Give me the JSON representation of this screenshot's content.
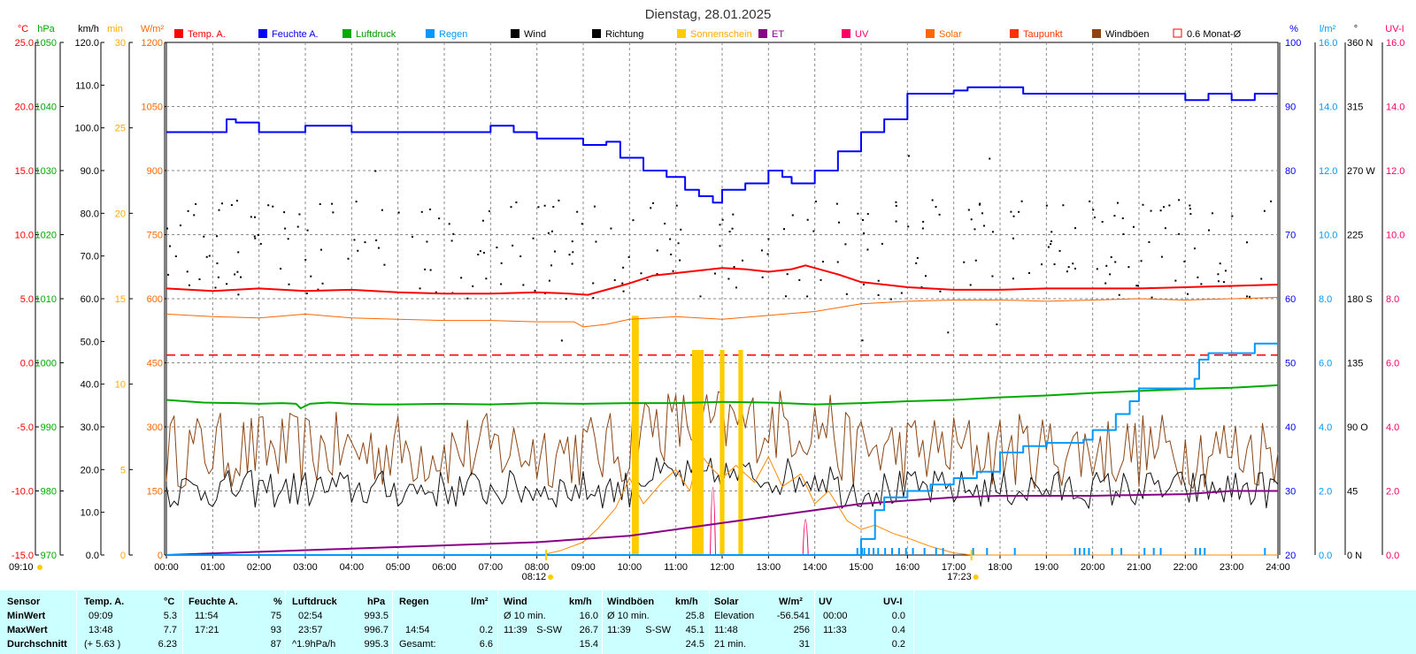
{
  "chart_data": {
    "type": "line",
    "title": "Dienstag, 28.01.2025",
    "x_ticks": [
      "00:00",
      "01:00",
      "02:00",
      "03:00",
      "04:00",
      "05:00",
      "06:00",
      "07:00",
      "08:00",
      "09:00",
      "10:00",
      "11:00",
      "12:00",
      "13:00",
      "14:00",
      "15:00",
      "16:00",
      "17:00",
      "18:00",
      "19:00",
      "20:00",
      "21:00",
      "22:00",
      "23:00",
      "24:00"
    ],
    "x_unit": "hours",
    "sunrise": "08:12",
    "sunset": "17:23",
    "moon": "09:10",
    "left_axes": [
      {
        "unit": "°C",
        "color": "#ff0000",
        "ylim": [
          -15,
          25
        ],
        "ticks": [
          "25.0",
          "20.0",
          "15.0",
          "10.0",
          "5.0",
          "0.0",
          "-5.0",
          "-10.0",
          "-15.0"
        ]
      },
      {
        "unit": "hPa",
        "color": "#00aa00",
        "ylim": [
          970,
          1050
        ],
        "ticks": [
          "1050",
          "1040",
          "1030",
          "1020",
          "1010",
          "1000",
          "990",
          "980",
          "970"
        ]
      },
      {
        "unit": "km/h",
        "color": "#000000",
        "ylim": [
          0,
          120
        ],
        "ticks": [
          "120.0",
          "110.0",
          "100.0",
          "90.0",
          "80.0",
          "70.0",
          "60.0",
          "50.0",
          "40.0",
          "30.0",
          "20.0",
          "10.0",
          "0.0"
        ]
      },
      {
        "unit": "min",
        "color": "#ffaa00",
        "ylim": [
          0,
          30
        ],
        "ticks": [
          "30",
          "25",
          "20",
          "15",
          "10",
          "5",
          "0"
        ]
      },
      {
        "unit": "W/m²",
        "color": "#ff6600",
        "ylim": [
          0,
          1200
        ],
        "ticks": [
          "1200",
          "1050",
          "900",
          "750",
          "600",
          "450",
          "300",
          "150",
          "0"
        ]
      }
    ],
    "right_axes": [
      {
        "unit": "%",
        "color": "#0000ff",
        "ylim": [
          20,
          100
        ],
        "ticks": [
          "100",
          "90",
          "80",
          "70",
          "60",
          "50",
          "40",
          "30",
          "20"
        ]
      },
      {
        "unit": "l/m²",
        "color": "#0099ff",
        "ylim": [
          0,
          16
        ],
        "ticks": [
          "16.0",
          "14.0",
          "12.0",
          "10.0",
          "8.0",
          "6.0",
          "4.0",
          "2.0",
          "0.0"
        ]
      },
      {
        "unit": "°",
        "color": "#000000",
        "ylim": [
          0,
          360
        ],
        "ticks": [
          "360 N",
          "315",
          "270 W",
          "225",
          "180 S",
          "135",
          "90 O",
          "45",
          "0 N"
        ]
      },
      {
        "unit": "UV-I",
        "color": "#ff0066",
        "ylim": [
          0,
          16
        ],
        "ticks": [
          "16.0",
          "14.0",
          "12.0",
          "10.0",
          "8.0",
          "6.0",
          "4.0",
          "2.0",
          "0.0"
        ]
      }
    ],
    "legend": [
      {
        "name": "Temp. A.",
        "color": "#ff0000",
        "text_color": "#ff0000"
      },
      {
        "name": "Feuchte A.",
        "color": "#0000ff",
        "text_color": "#0000ff"
      },
      {
        "name": "Luftdruck",
        "color": "#00aa00",
        "text_color": "#009900"
      },
      {
        "name": "Regen",
        "color": "#0099ff",
        "text_color": "#0099ff"
      },
      {
        "name": "Wind",
        "color": "#000000",
        "text_color": "#000000"
      },
      {
        "name": "Richtung",
        "color": "#000000",
        "text_color": "#000000"
      },
      {
        "name": "Sonnenschein",
        "color": "#ffcc00",
        "text_color": "#ffaa00"
      },
      {
        "name": "ET",
        "color": "#880088",
        "text_color": "#880088"
      },
      {
        "name": "UV",
        "color": "#ff0066",
        "text_color": "#ff0066"
      },
      {
        "name": "Solar",
        "color": "#ff6600",
        "text_color": "#ff6600"
      },
      {
        "name": "Taupunkt",
        "color": "#ff3300",
        "text_color": "#ff3300"
      },
      {
        "name": "Windböen",
        "color": "#8b4513",
        "text_color": "#000000"
      },
      {
        "name": "0.6 Monat-Ø",
        "color": "#ff0000",
        "text_color": "#000000"
      }
    ],
    "reference_line": {
      "name": "0.6 Monat-Ø",
      "value_c": 0.6
    },
    "series": {
      "humidity": [
        [
          0,
          86
        ],
        [
          1,
          86
        ],
        [
          1.3,
          88
        ],
        [
          1.5,
          87.5
        ],
        [
          2,
          86
        ],
        [
          2.8,
          86
        ],
        [
          3,
          87
        ],
        [
          3.8,
          87
        ],
        [
          4,
          86
        ],
        [
          6.5,
          86
        ],
        [
          7,
          87
        ],
        [
          7.5,
          86
        ],
        [
          8,
          85
        ],
        [
          8.8,
          85
        ],
        [
          9,
          84
        ],
        [
          9.5,
          84.5
        ],
        [
          9.8,
          82
        ],
        [
          10.3,
          80
        ],
        [
          10.8,
          79
        ],
        [
          11.2,
          77
        ],
        [
          11.5,
          76
        ],
        [
          11.8,
          75
        ],
        [
          12,
          77
        ],
        [
          12.5,
          78
        ],
        [
          13,
          80
        ],
        [
          13.3,
          79
        ],
        [
          13.5,
          78
        ],
        [
          14,
          80
        ],
        [
          14.5,
          83
        ],
        [
          15,
          86
        ],
        [
          15.5,
          88
        ],
        [
          16,
          92
        ],
        [
          17,
          92.5
        ],
        [
          17.3,
          93
        ],
        [
          18.3,
          93
        ],
        [
          18.5,
          92
        ],
        [
          20.5,
          92
        ],
        [
          21.5,
          92
        ],
        [
          22,
          91
        ],
        [
          22.5,
          92
        ],
        [
          23,
          91
        ],
        [
          23.5,
          92
        ],
        [
          24,
          92
        ]
      ],
      "temperature": [
        [
          0,
          5.8
        ],
        [
          1,
          5.6
        ],
        [
          2,
          5.8
        ],
        [
          3,
          5.6
        ],
        [
          4,
          5.7
        ],
        [
          5,
          5.5
        ],
        [
          6,
          5.4
        ],
        [
          7,
          5.4
        ],
        [
          8,
          5.5
        ],
        [
          8.7,
          5.4
        ],
        [
          9.1,
          5.3
        ],
        [
          9.5,
          5.7
        ],
        [
          10,
          6.2
        ],
        [
          10.5,
          6.8
        ],
        [
          11,
          7.0
        ],
        [
          11.5,
          7.2
        ],
        [
          12,
          7.4
        ],
        [
          12.5,
          7.3
        ],
        [
          13,
          7.1
        ],
        [
          13.5,
          7.3
        ],
        [
          13.8,
          7.6
        ],
        [
          14.5,
          6.9
        ],
        [
          15,
          6.3
        ],
        [
          16,
          5.9
        ],
        [
          17,
          5.7
        ],
        [
          18,
          5.7
        ],
        [
          19,
          5.8
        ],
        [
          20,
          5.8
        ],
        [
          21,
          5.8
        ],
        [
          22,
          5.9
        ],
        [
          23,
          6.0
        ],
        [
          24,
          6.1
        ]
      ],
      "dewpoint": [
        [
          0,
          3.8
        ],
        [
          1,
          3.6
        ],
        [
          2,
          3.5
        ],
        [
          3,
          3.8
        ],
        [
          4,
          3.5
        ],
        [
          5,
          3.4
        ],
        [
          6,
          3.3
        ],
        [
          7,
          3.3
        ],
        [
          8,
          3.2
        ],
        [
          8.8,
          3.2
        ],
        [
          9,
          2.8
        ],
        [
          9.5,
          3.0
        ],
        [
          10,
          3.4
        ],
        [
          11,
          3.6
        ],
        [
          12,
          3.4
        ],
        [
          13,
          3.7
        ],
        [
          14,
          4.0
        ],
        [
          15,
          4.6
        ],
        [
          16,
          4.8
        ],
        [
          17,
          4.9
        ],
        [
          18,
          4.9
        ],
        [
          19,
          4.8
        ],
        [
          20,
          4.9
        ],
        [
          21,
          5.0
        ],
        [
          22,
          4.9
        ],
        [
          23,
          5.0
        ],
        [
          24,
          5.1
        ]
      ],
      "pressure": [
        [
          0,
          994.2
        ],
        [
          0.8,
          993.8
        ],
        [
          1.5,
          993.7
        ],
        [
          2,
          993.6
        ],
        [
          2.5,
          993.7
        ],
        [
          2.8,
          993.6
        ],
        [
          2.9,
          992.9
        ],
        [
          3.1,
          993.6
        ],
        [
          3.5,
          993.8
        ],
        [
          4,
          993.6
        ],
        [
          4.5,
          993.5
        ],
        [
          5,
          993.5
        ],
        [
          6,
          993.6
        ],
        [
          7,
          993.5
        ],
        [
          8,
          993.7
        ],
        [
          9,
          993.6
        ],
        [
          10,
          993.7
        ],
        [
          11,
          993.7
        ],
        [
          12,
          993.9
        ],
        [
          13,
          993.8
        ],
        [
          14,
          993.5
        ],
        [
          15,
          993.7
        ],
        [
          16,
          994.0
        ],
        [
          17,
          994.2
        ],
        [
          18,
          994.6
        ],
        [
          19,
          994.9
        ],
        [
          20,
          995.3
        ],
        [
          21,
          995.6
        ],
        [
          22,
          995.9
        ],
        [
          23,
          996.1
        ],
        [
          24,
          996.5
        ]
      ],
      "rain_sum": [
        [
          0,
          0
        ],
        [
          14.8,
          0
        ],
        [
          15,
          0.5
        ],
        [
          15.3,
          1.4
        ],
        [
          15.5,
          1.8
        ],
        [
          16,
          2.0
        ],
        [
          16.5,
          2.2
        ],
        [
          17,
          2.4
        ],
        [
          17.5,
          2.6
        ],
        [
          18,
          3.2
        ],
        [
          18.5,
          3.4
        ],
        [
          19,
          3.5
        ],
        [
          19.5,
          3.5
        ],
        [
          19.8,
          3.6
        ],
        [
          20,
          3.9
        ],
        [
          20.5,
          4.4
        ],
        [
          20.8,
          4.8
        ],
        [
          21,
          5.2
        ],
        [
          22,
          5.2
        ],
        [
          22.2,
          5.5
        ],
        [
          22.3,
          6.1
        ],
        [
          22.5,
          6.3
        ],
        [
          23,
          6.3
        ],
        [
          23.3,
          6.3
        ],
        [
          23.5,
          6.6
        ],
        [
          24,
          6.6
        ]
      ],
      "et": [
        [
          0,
          0
        ],
        [
          2,
          0.1
        ],
        [
          4,
          0.2
        ],
        [
          6,
          0.3
        ],
        [
          8,
          0.4
        ],
        [
          10,
          0.6
        ],
        [
          11,
          0.8
        ],
        [
          12,
          1.0
        ],
        [
          13,
          1.2
        ],
        [
          14,
          1.4
        ],
        [
          15,
          1.6
        ],
        [
          16,
          1.7
        ],
        [
          17,
          1.8
        ],
        [
          18,
          1.85
        ],
        [
          20,
          1.85
        ],
        [
          22,
          1.9
        ],
        [
          23,
          2.0
        ],
        [
          24,
          2.0
        ]
      ],
      "solar": [
        [
          0,
          0
        ],
        [
          8.1,
          0
        ],
        [
          8.5,
          10
        ],
        [
          9,
          30
        ],
        [
          9.3,
          60
        ],
        [
          9.7,
          110
        ],
        [
          10,
          180
        ],
        [
          10.3,
          120
        ],
        [
          10.7,
          170
        ],
        [
          11,
          200
        ],
        [
          11.3,
          150
        ],
        [
          11.5,
          240
        ],
        [
          11.8,
          200
        ],
        [
          12,
          180
        ],
        [
          12.3,
          210
        ],
        [
          12.7,
          170
        ],
        [
          13,
          230
        ],
        [
          13.3,
          160
        ],
        [
          13.7,
          190
        ],
        [
          14,
          120
        ],
        [
          14.3,
          150
        ],
        [
          14.7,
          80
        ],
        [
          15,
          60
        ],
        [
          15.3,
          70
        ],
        [
          15.7,
          50
        ],
        [
          16,
          40
        ],
        [
          16.5,
          20
        ],
        [
          17,
          5
        ],
        [
          17.4,
          0
        ],
        [
          24,
          0
        ]
      ],
      "sunshine_bars": [
        [
          10.05,
          10.2,
          14
        ],
        [
          11.35,
          11.6,
          12
        ],
        [
          11.95,
          12.05,
          12
        ],
        [
          12.35,
          12.45,
          12
        ]
      ],
      "uv_spikes": [
        [
          11.8,
          0.4
        ],
        [
          13.8,
          0.2
        ]
      ],
      "rain_ticks": [
        14.9,
        15.0,
        15.05,
        15.15,
        15.25,
        15.35,
        15.5,
        15.65,
        15.8,
        15.95,
        16.1,
        16.35,
        16.6,
        16.75,
        17.4,
        17.7,
        18.3,
        19.6,
        19.7,
        19.8,
        19.9,
        20.4,
        20.6,
        21.1,
        21.3,
        21.45,
        22.2,
        22.3,
        22.4,
        23.7
      ],
      "wind_avg_level": 15.4,
      "gust_avg_level": 24.5,
      "direction_center": 215
    }
  },
  "stats": {
    "headers": {
      "sensor": "Sensor",
      "temp": "Temp. A.",
      "temp_unit": "°C",
      "hum": "Feuchte A.",
      "hum_unit": "%",
      "press": "Luftdruck",
      "press_unit": "hPa",
      "rain": "Regen",
      "rain_unit": "l/m²",
      "wind": "Wind",
      "wind_unit": "km/h",
      "gust": "Windböen",
      "gust_unit": "km/h",
      "solar": "Solar",
      "solar_unit": "W/m²",
      "uv": "UV",
      "uv_unit": "UV-I"
    },
    "rows": [
      {
        "label": "MinWert",
        "temp_time": "09:09",
        "temp_val": "5.3",
        "hum_time": "11:54",
        "hum_val": "75",
        "press_time": "02:54",
        "press_val": "993.5",
        "rain_time": "",
        "rain_val": "",
        "wind_time": "Ø 10 min.",
        "wind_dir": "",
        "wind_val": "16.0",
        "gust_time": "Ø 10 min.",
        "gust_dir": "",
        "gust_val": "25.8",
        "solar_time": "Elevation",
        "solar_val": "-56.541",
        "uv_time": "00:00",
        "uv_val": "0.0"
      },
      {
        "label": "MaxWert",
        "temp_time": "13:48",
        "temp_val": "7.7",
        "hum_time": "17:21",
        "hum_val": "93",
        "press_time": "23:57",
        "press_val": "996.7",
        "rain_time": "14:54",
        "rain_val": "0.2",
        "wind_time": "11:39",
        "wind_dir": "S-SW",
        "wind_val": "26.7",
        "gust_time": "11:39",
        "gust_dir": "S-SW",
        "gust_val": "45.1",
        "solar_time": "11:48",
        "solar_val": "256",
        "uv_time": "11:33",
        "uv_val": "0.4"
      },
      {
        "label": "Durchschnitt",
        "temp_time": "(+ 5.63 )",
        "temp_val": "6.23",
        "hum_time": "",
        "hum_val": "87",
        "press_time": "^1.9hPa/h",
        "press_val": "995.3",
        "rain_time": "Gesamt:",
        "rain_val": "6.6",
        "wind_time": "",
        "wind_dir": "",
        "wind_val": "15.4",
        "gust_time": "",
        "gust_dir": "",
        "gust_val": "24.5",
        "solar_time": "21 min.",
        "solar_val": "31",
        "uv_time": "",
        "uv_val": "0.2"
      }
    ]
  }
}
